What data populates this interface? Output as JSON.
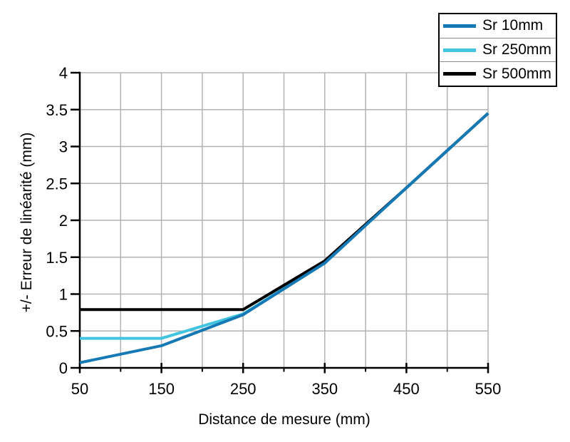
{
  "chart_data": {
    "type": "line",
    "title": "",
    "xlabel": "Distance de mesure (mm)",
    "ylabel": "+/- Erreur de linéarité (mm)",
    "xlim": [
      50,
      550
    ],
    "ylim": [
      0,
      4
    ],
    "grid": "on",
    "grid_x_step_mm": 50,
    "grid_y_step": 0.5,
    "x_ticks": [
      50,
      150,
      250,
      350,
      450,
      550
    ],
    "x_tick_labels": [
      "50",
      "150",
      "250",
      "350",
      "450",
      "550"
    ],
    "x_minor_ticks": [
      100,
      200,
      300,
      400,
      500
    ],
    "y_ticks": [
      0,
      0.5,
      1,
      1.5,
      2,
      2.5,
      3,
      3.5,
      4
    ],
    "y_tick_labels": [
      "0",
      "0.5",
      "1",
      "1.5",
      "2",
      "2.5",
      "3",
      "3.5",
      "4"
    ],
    "legend_position": "top-right",
    "series": [
      {
        "name": "Sr 10mm",
        "color": "#1579b5",
        "x": [
          50,
          150,
          250,
          350,
          450,
          550
        ],
        "y": [
          0.07,
          0.3,
          0.72,
          1.42,
          2.44,
          3.45
        ]
      },
      {
        "name": "Sr 250mm",
        "color": "#40c4e0",
        "x": [
          50,
          150,
          250,
          350,
          450,
          550
        ],
        "y": [
          0.4,
          0.4,
          0.73,
          1.42,
          2.44,
          3.45
        ]
      },
      {
        "name": "Sr 500mm",
        "color": "#000000",
        "x": [
          50,
          150,
          250,
          350,
          450,
          550
        ],
        "y": [
          0.79,
          0.79,
          0.79,
          1.45,
          2.44,
          3.45
        ]
      }
    ],
    "colors": {
      "grid": "#b3b3b3",
      "axis": "#000000",
      "background": "#ffffff"
    }
  },
  "legend": {
    "items": [
      {
        "label": "Sr 10mm",
        "color": "#1579b5"
      },
      {
        "label": "Sr 250mm",
        "color": "#40c4e0"
      },
      {
        "label": "Sr 500mm",
        "color": "#000000"
      }
    ]
  }
}
